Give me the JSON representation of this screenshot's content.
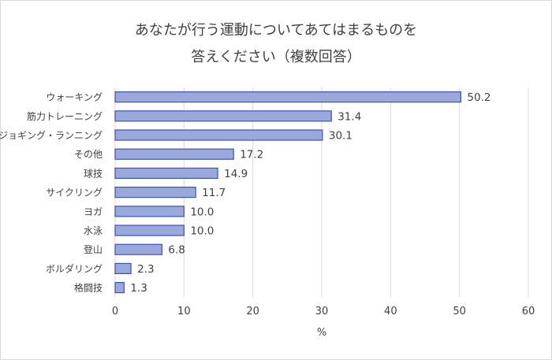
{
  "chart_data": {
    "type": "bar",
    "orientation": "horizontal",
    "title_lines": [
      "あなたが行う運動についてあてはまるものを",
      "答えください（複数回答）"
    ],
    "xlabel": "%",
    "ylabel": "",
    "xlim": [
      0,
      60
    ],
    "x_ticks": [
      0,
      10,
      20,
      30,
      40,
      50,
      60
    ],
    "grid": true,
    "legend": "none",
    "colors": {
      "bar_fill": "#9aa8dc",
      "bar_stroke": "#3a55b0",
      "grid": "#d9d9d9"
    },
    "categories": [
      "ウォーキング",
      "筋力トレーニング",
      "ジョギング・ランニング",
      "その他",
      "球技",
      "サイクリング",
      "ヨガ",
      "水泳",
      "登山",
      "ボルダリング",
      "格闘技"
    ],
    "values": [
      50.2,
      31.4,
      30.1,
      17.2,
      14.9,
      11.7,
      10.0,
      10.0,
      6.8,
      2.3,
      1.3
    ],
    "value_labels": [
      "50.2",
      "31.4",
      "30.1",
      "17.2",
      "14.9",
      "11.7",
      "10.0",
      "10.0",
      "6.8",
      "2.3",
      "1.3"
    ]
  }
}
